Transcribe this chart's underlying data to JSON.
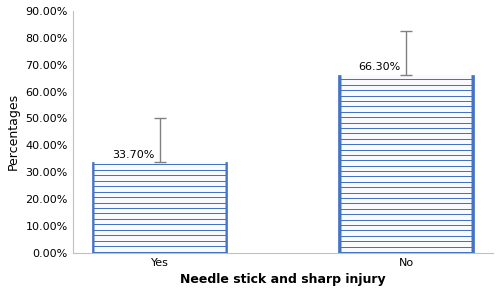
{
  "categories": [
    "Yes",
    "No"
  ],
  "values": [
    33.7,
    66.3
  ],
  "error_upper": [
    16.3,
    16.3
  ],
  "bar_color": "#4472C4",
  "bar_edgecolor": "#4472C4",
  "hatch_color": "white",
  "bar_width": 0.55,
  "xlabel": "Needle stick and sharp injury",
  "ylabel": "Percentages",
  "ylim": [
    0,
    90
  ],
  "yticks": [
    0,
    10,
    20,
    30,
    40,
    50,
    60,
    70,
    80,
    90
  ],
  "ytick_labels": [
    "0.00%",
    "10.00%",
    "20.00%",
    "30.00%",
    "40.00%",
    "50.00%",
    "60.00%",
    "70.00%",
    "80.00%",
    "90.00%"
  ],
  "value_labels": [
    "33.70%",
    "66.30%"
  ],
  "error_color": "#808080",
  "capsize": 4,
  "background_color": "#ffffff",
  "label_fontsize": 8,
  "tick_fontsize": 8,
  "xlabel_fontsize": 9,
  "ylabel_fontsize": 9,
  "spine_color": "#c0c0c0"
}
